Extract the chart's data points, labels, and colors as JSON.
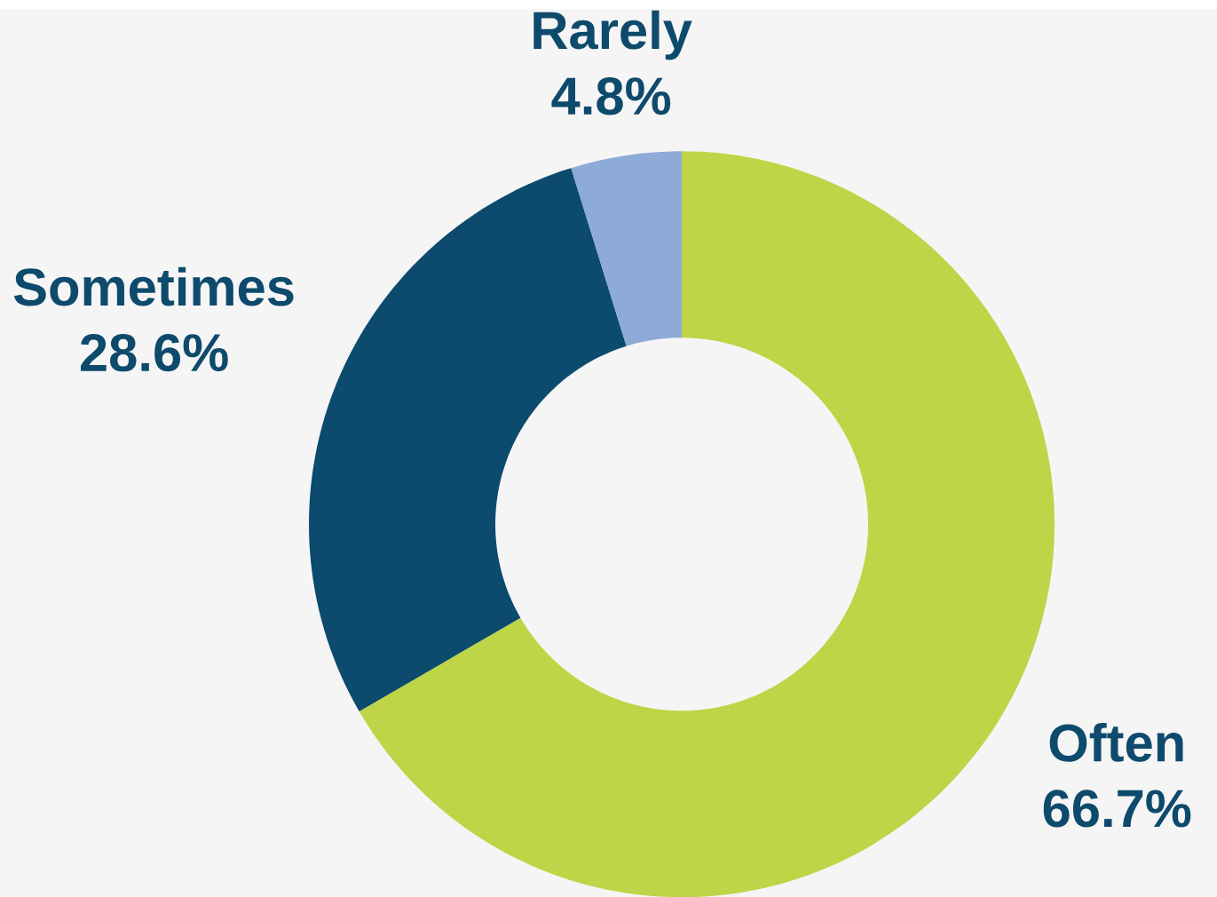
{
  "chart_data": {
    "type": "donut",
    "categories": [
      "Often",
      "Sometimes",
      "Rarely"
    ],
    "values": [
      66.7,
      28.6,
      4.8
    ],
    "value_labels": [
      "66.7%",
      "28.6%",
      "4.8%"
    ],
    "colors": [
      "#bdd546",
      "#0c4a6e",
      "#8eaad6"
    ]
  }
}
